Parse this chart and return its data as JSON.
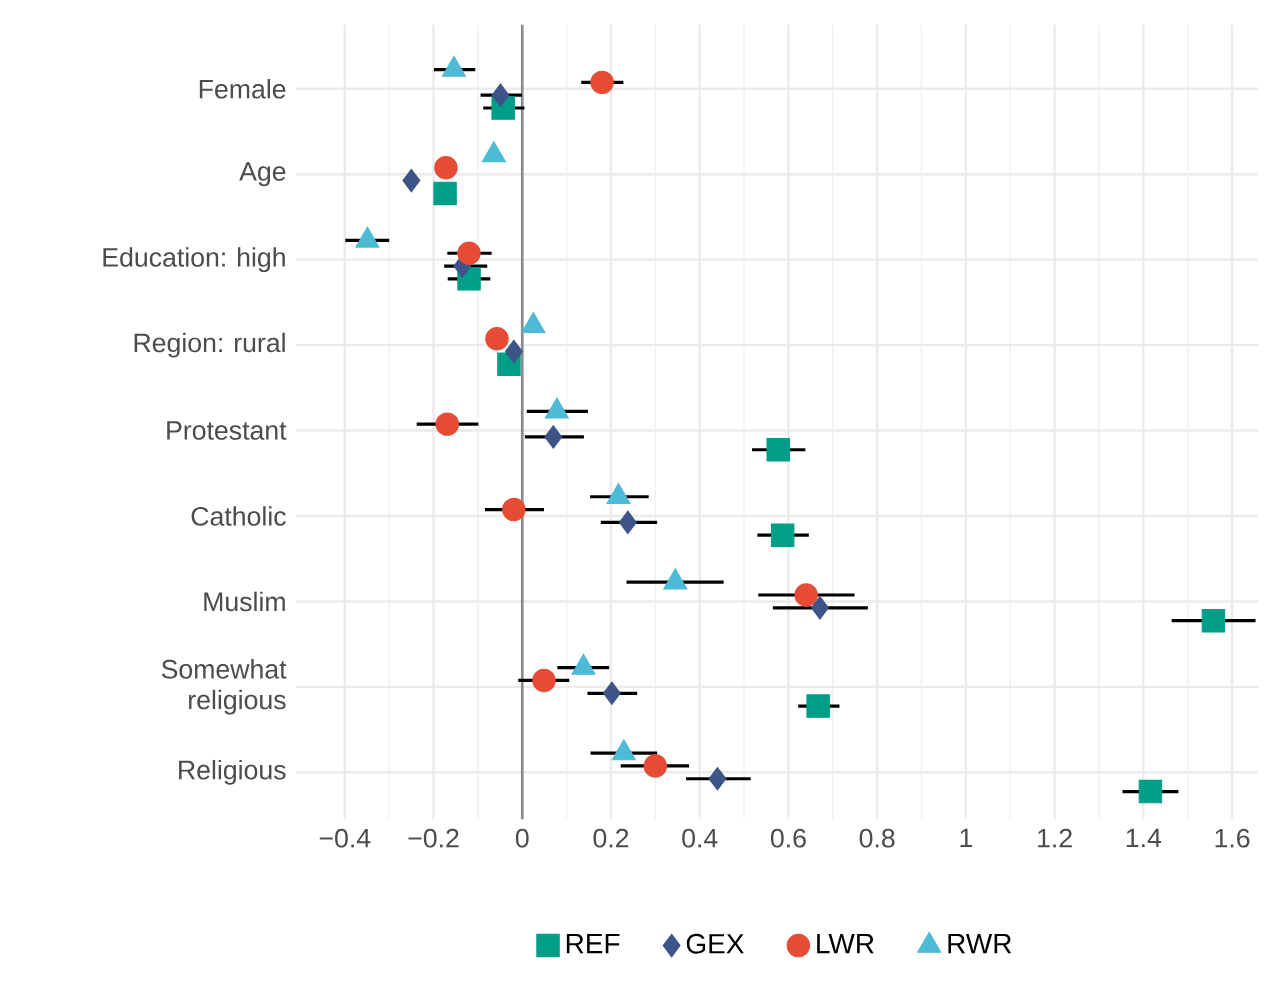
{
  "chart_data": {
    "type": "scatter",
    "orientation": "horizontal",
    "categories": [
      "Female",
      "Age",
      "Education: high",
      "Region: rural",
      "Protestant",
      "Catholic",
      "Muslim",
      "Somewhat religious",
      "Religious"
    ],
    "series": [
      {
        "name": "REF",
        "color": "#009e87",
        "marker": "square",
        "values": [
          -0.043,
          -0.174,
          -0.12,
          -0.03,
          0.577,
          0.587,
          1.558,
          0.667,
          1.416
        ],
        "errors": [
          [
            -0.088,
            0.005
          ],
          null,
          [
            -0.168,
            -0.072
          ],
          null,
          [
            0.518,
            0.638
          ],
          [
            0.53,
            0.646
          ],
          [
            1.464,
            1.653
          ],
          [
            0.622,
            0.715
          ],
          [
            1.353,
            1.479
          ]
        ]
      },
      {
        "name": "GEX",
        "color": "#3c5488",
        "marker": "diamond",
        "values": [
          -0.049,
          -0.25,
          -0.135,
          -0.019,
          0.07,
          0.238,
          0.671,
          0.202,
          0.44
        ],
        "errors": [
          [
            -0.094,
            -0.001
          ],
          null,
          [
            -0.176,
            -0.079
          ],
          null,
          [
            0.006,
            0.139
          ],
          [
            0.177,
            0.304
          ],
          [
            0.565,
            0.779
          ],
          [
            0.147,
            0.259
          ],
          [
            0.369,
            0.515
          ]
        ]
      },
      {
        "name": "LWR",
        "color": "#e64b35",
        "marker": "circle",
        "values": [
          0.18,
          -0.172,
          -0.12,
          -0.057,
          -0.169,
          -0.019,
          0.64,
          0.049,
          0.3
        ],
        "errors": [
          [
            0.133,
            0.228
          ],
          null,
          [
            -0.169,
            -0.069
          ],
          null,
          [
            -0.238,
            -0.099
          ],
          [
            -0.084,
            0.049
          ],
          [
            0.532,
            0.749
          ],
          [
            -0.009,
            0.106
          ],
          [
            0.222,
            0.376
          ]
        ]
      },
      {
        "name": "RWR",
        "color": "#4dbbd5",
        "marker": "triangle",
        "values": [
          -0.154,
          -0.064,
          -0.349,
          0.025,
          0.078,
          0.217,
          0.345,
          0.138,
          0.229
        ],
        "errors": [
          [
            -0.199,
            -0.106
          ],
          null,
          [
            -0.399,
            -0.3
          ],
          null,
          [
            0.01,
            0.148
          ],
          [
            0.153,
            0.285
          ],
          [
            0.235,
            0.454
          ],
          [
            0.079,
            0.196
          ],
          [
            0.154,
            0.304
          ]
        ]
      }
    ],
    "xlim": [
      -0.51,
      1.66
    ],
    "xticks": [
      {
        "value": -0.4,
        "label": "−0.4"
      },
      {
        "value": -0.2,
        "label": "−0.2"
      },
      0,
      0.2,
      0.4,
      0.6,
      0.8,
      1,
      1.2,
      1.4,
      1.6
    ],
    "ref_lines": [
      {
        "axis": "x",
        "value": 0,
        "color": "#8c8c8c"
      }
    ],
    "grid": true,
    "legend": "bottom"
  }
}
